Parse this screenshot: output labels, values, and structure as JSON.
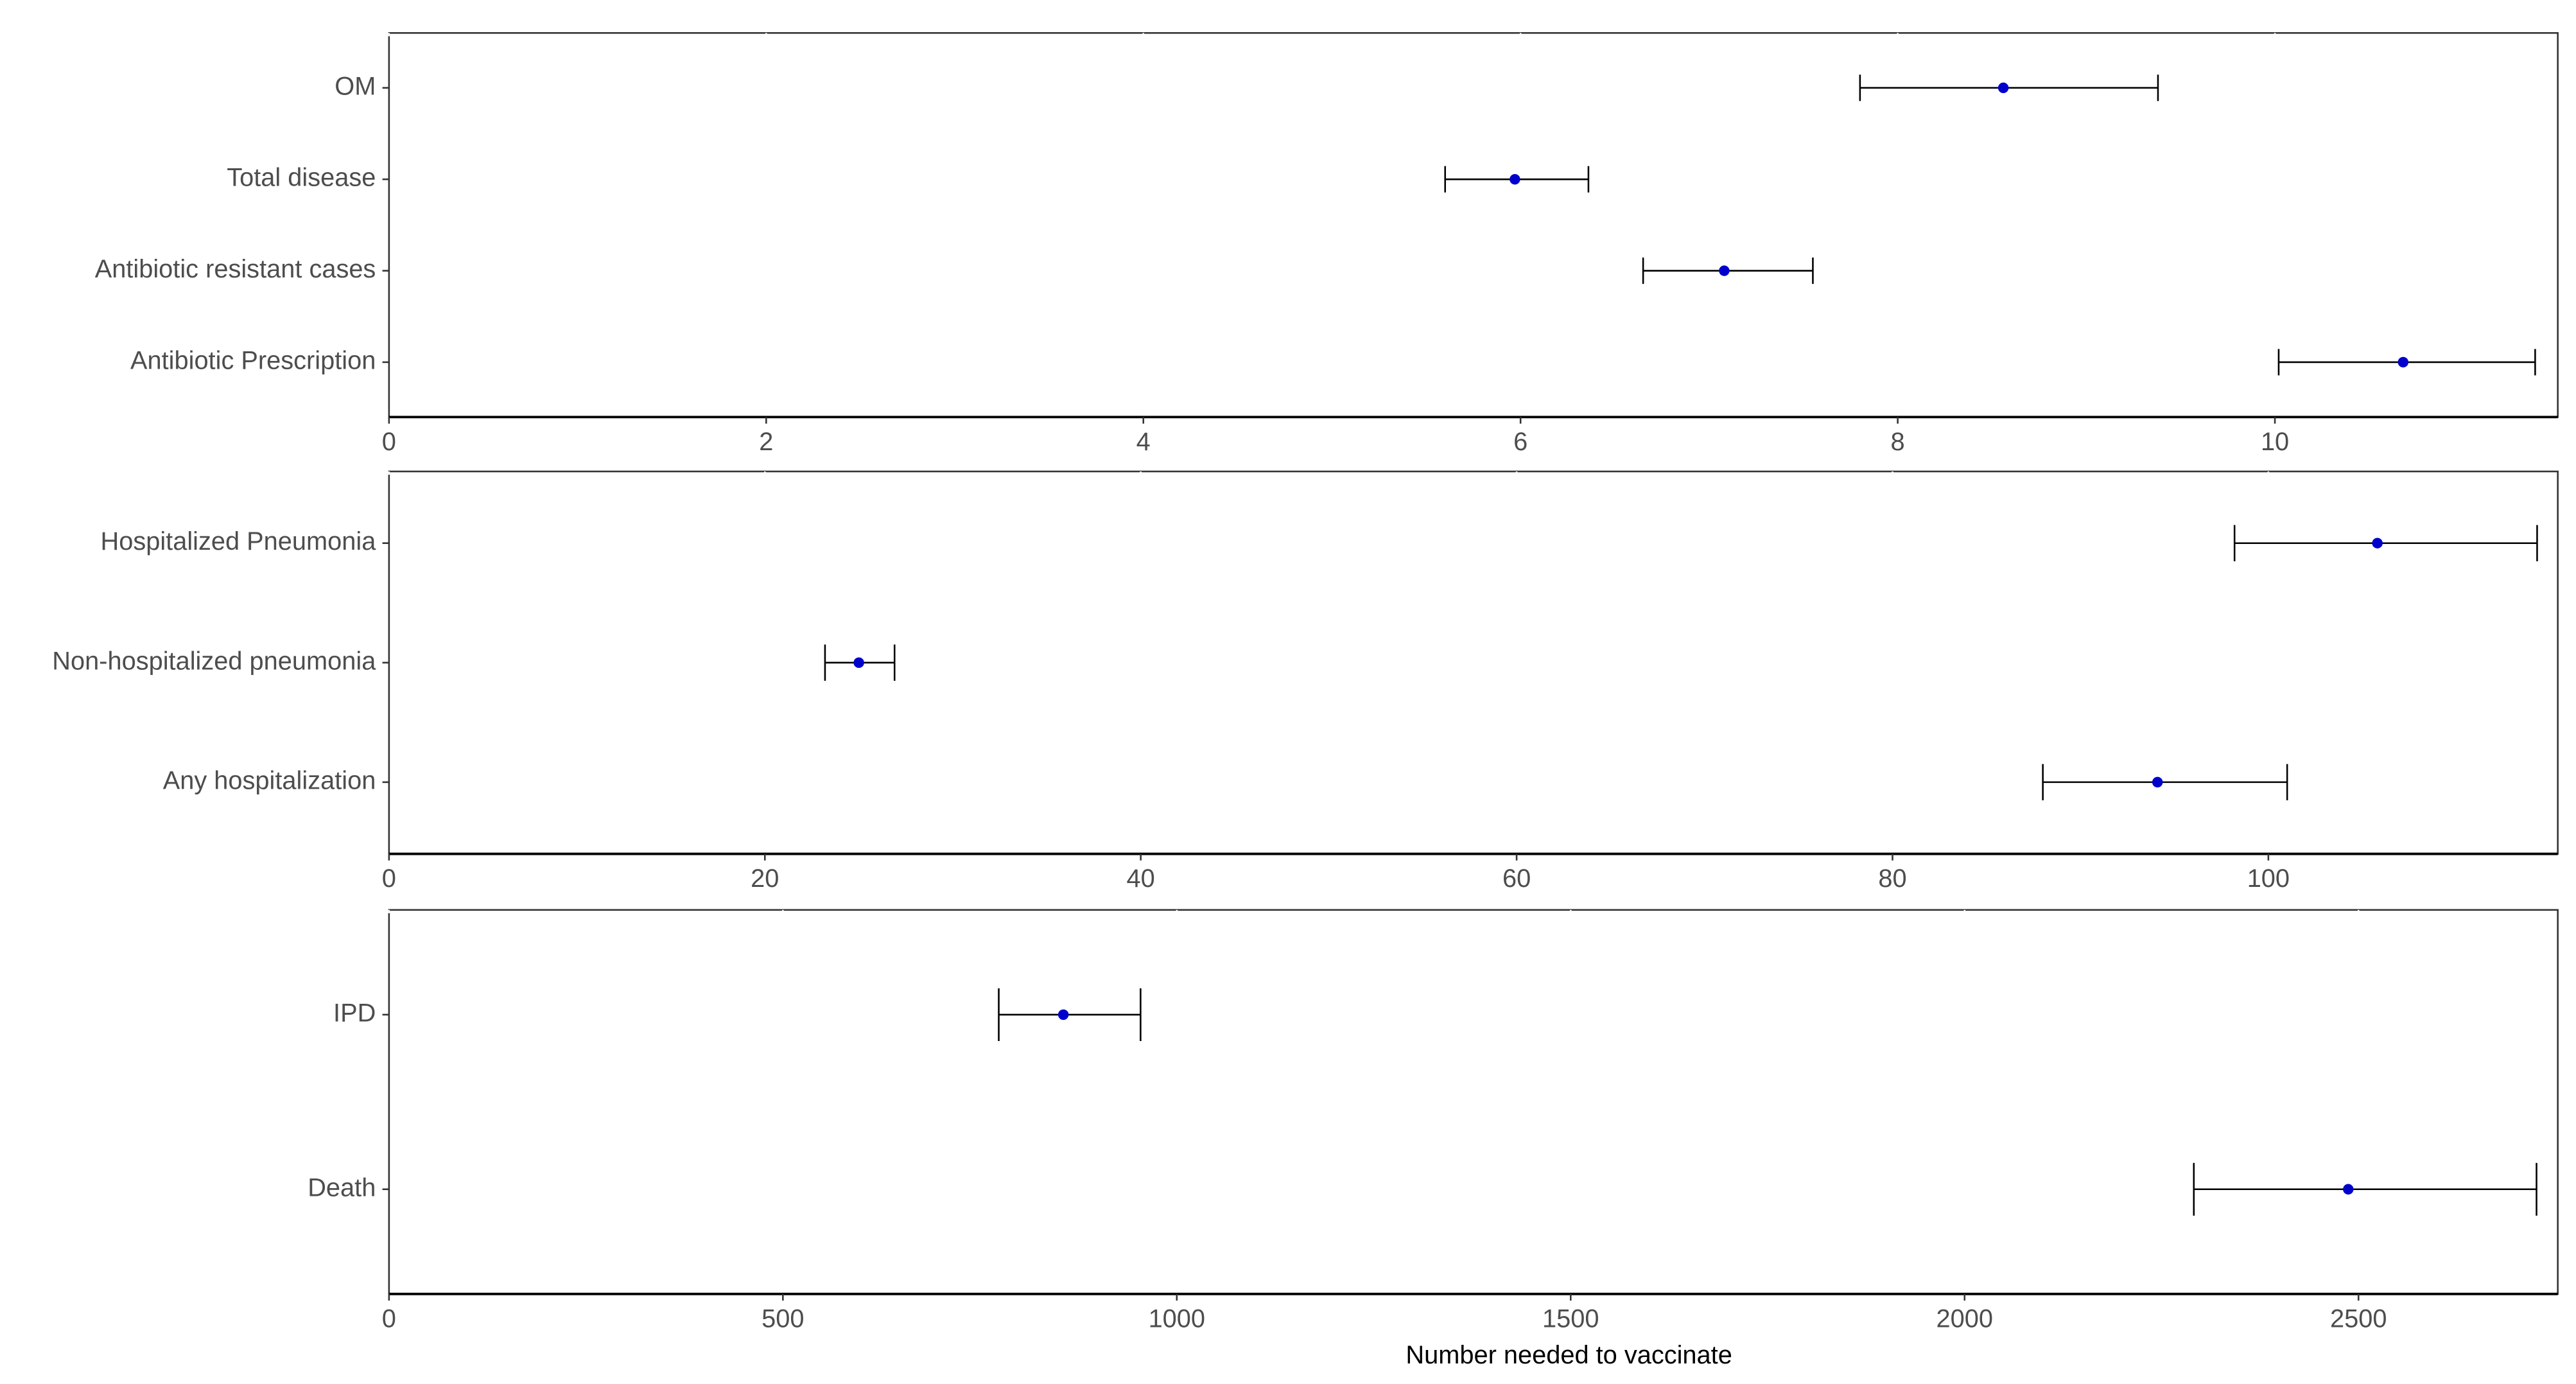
{
  "chart_data": [
    {
      "type": "pointrange",
      "point_color": "#0000cd",
      "bar_color": "#000000",
      "categories": [
        "OM",
        "Total disease",
        "Antibiotic resistant cases",
        "Antibiotic Prescription"
      ],
      "values": [
        8.56,
        5.97,
        7.08,
        10.68
      ],
      "lower": [
        7.8,
        5.6,
        6.65,
        10.02
      ],
      "upper": [
        9.38,
        6.36,
        7.55,
        11.38
      ],
      "xlim": [
        0,
        11.5
      ],
      "xticks": [
        0,
        2,
        4,
        6,
        8,
        10
      ]
    },
    {
      "type": "pointrange",
      "point_color": "#0000cd",
      "bar_color": "#000000",
      "categories": [
        "Hospitalized Pneumonia",
        "Non-hospitalized pneumonia",
        "Any  hospitalization"
      ],
      "values": [
        105.8,
        25.0,
        94.1
      ],
      "lower": [
        98.2,
        23.2,
        88.0
      ],
      "upper": [
        114.3,
        26.9,
        101.0
      ],
      "xlim": [
        0,
        115.4
      ],
      "xticks": [
        0,
        20,
        40,
        60,
        80,
        100
      ]
    },
    {
      "type": "pointrange",
      "point_color": "#0000cd",
      "bar_color": "#000000",
      "categories": [
        "IPD",
        "Death"
      ],
      "values": [
        856,
        2487
      ],
      "lower": [
        774,
        2291
      ],
      "upper": [
        954,
        2726
      ],
      "xlim": [
        0,
        2753
      ],
      "xticks": [
        0,
        500,
        1000,
        1500,
        2000,
        2500
      ],
      "xlabel": "Number needed to vaccinate"
    }
  ]
}
